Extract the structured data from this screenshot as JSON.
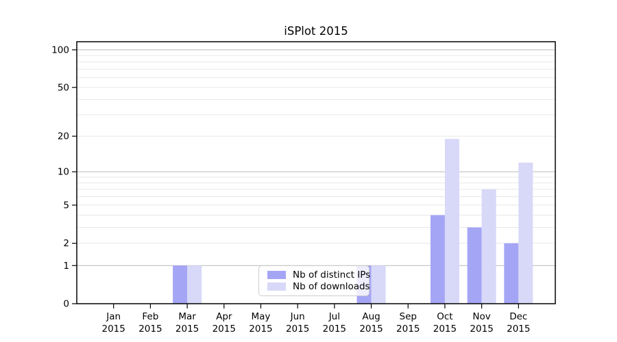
{
  "chart_data": {
    "type": "bar",
    "title": "iSPlot 2015",
    "categories": [
      "Jan",
      "Feb",
      "Mar",
      "Apr",
      "May",
      "Jun",
      "Jul",
      "Aug",
      "Sep",
      "Oct",
      "Nov",
      "Dec"
    ],
    "year": "2015",
    "series": [
      {
        "name": "Nb of distinct IPs",
        "color": "#a5a5f6",
        "values": [
          0,
          0,
          1,
          0,
          0,
          0,
          0,
          1,
          0,
          4,
          3,
          2
        ]
      },
      {
        "name": "Nb of downloads",
        "color": "#d8d8f8",
        "values": [
          0,
          0,
          1,
          0,
          0,
          0,
          0,
          1,
          0,
          19,
          7,
          12
        ]
      }
    ],
    "y_ticks": [
      0,
      1,
      2,
      5,
      10,
      20,
      50,
      100
    ],
    "y_scale": "log1p",
    "ylim": [
      0,
      116
    ],
    "xlabel": "",
    "ylabel": "",
    "grid": true,
    "legend_position": "inside-bottom-center"
  }
}
